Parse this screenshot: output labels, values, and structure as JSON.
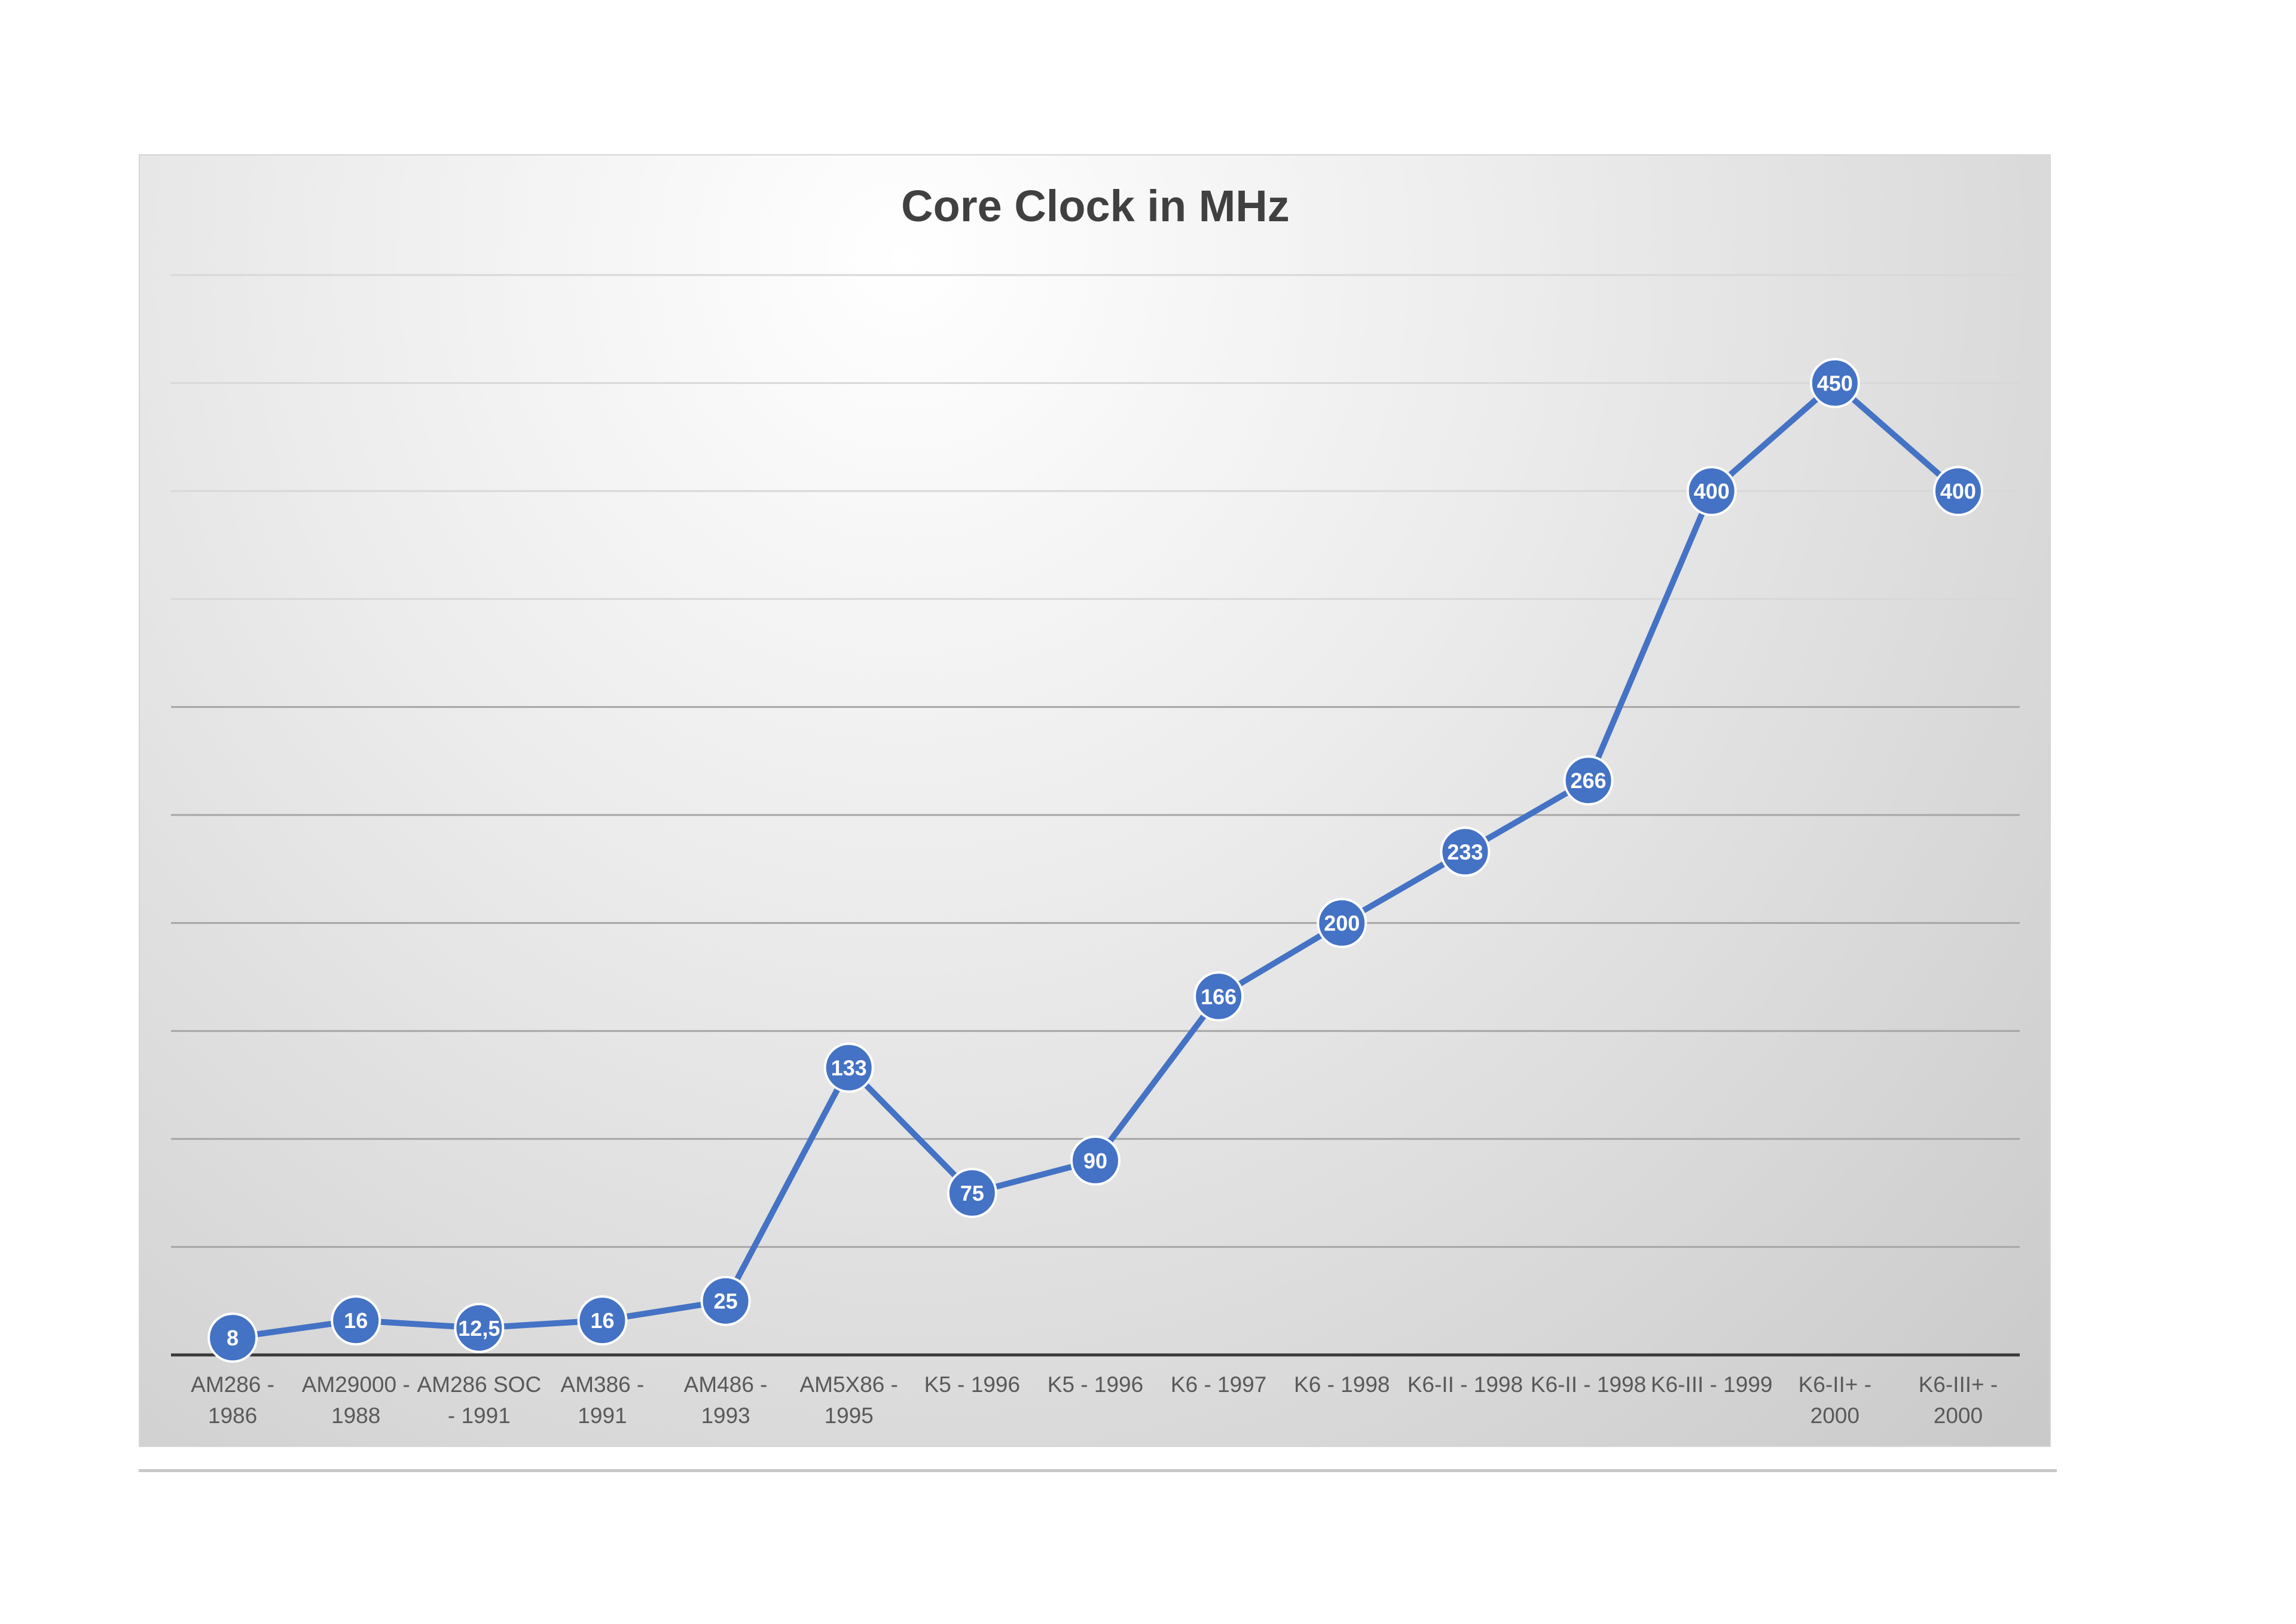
{
  "chart_data": {
    "type": "line",
    "title": "Core Clock in MHz",
    "categories": [
      "AM286 - 1986",
      "AM29000 - 1988",
      "AM286 SOC - 1991",
      "AM386 - 1991",
      "AM486 - 1993",
      "AM5X86 - 1995",
      "K5 - 1996",
      "K5 - 1996",
      "K6 - 1997",
      "K6 - 1998",
      "K6-II - 1998",
      "K6-II - 1998",
      "K6-III - 1999",
      "K6-II+ - 2000",
      "K6-III+ - 2000"
    ],
    "category_label_lines": [
      [
        "AM286 -",
        "1986"
      ],
      [
        "AM29000 -",
        "1988"
      ],
      [
        "AM286 SOC",
        "- 1991"
      ],
      [
        "AM386 -",
        "1991"
      ],
      [
        "AM486 -",
        "1993"
      ],
      [
        "AM5X86 -",
        "1995"
      ],
      [
        "K5 - 1996"
      ],
      [
        "K5 - 1996"
      ],
      [
        "K6 - 1997"
      ],
      [
        "K6 - 1998"
      ],
      [
        "K6-II - 1998"
      ],
      [
        "K6-II - 1998"
      ],
      [
        "K6-III - 1999"
      ],
      [
        "K6-II+  -",
        "2000"
      ],
      [
        "K6-III+  -",
        "2000"
      ]
    ],
    "series": [
      {
        "values": [
          8,
          16,
          12.5,
          16,
          25,
          133,
          75,
          90,
          166,
          200,
          233,
          266,
          400,
          450,
          400
        ],
        "data_labels": [
          "8",
          "16",
          "12,5",
          "16",
          "25",
          "133",
          "75",
          "90",
          "166",
          "200",
          "233",
          "266",
          "400",
          "450",
          "400"
        ]
      }
    ],
    "ylim": [
      0,
      500
    ],
    "gridlines": true,
    "y_tick_labels_visible": false,
    "legend": "none",
    "line_color": "#4472C4",
    "marker_color": "#4472C4",
    "data_label_color": "#FFFFFF",
    "title_color": "#404040",
    "axis_label_color": "#595959"
  }
}
